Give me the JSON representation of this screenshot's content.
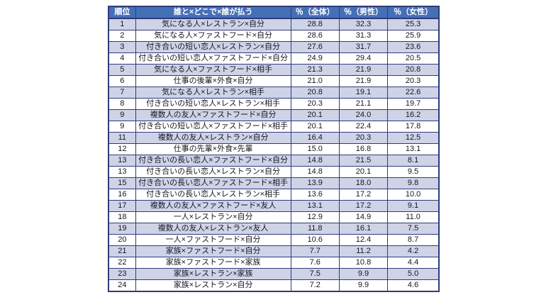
{
  "colors": {
    "header_bg": "#4470b8",
    "header_text": "#ffffff",
    "band_row_bg": "#ced3e8",
    "plain_row_bg": "#ffffff",
    "border": "#2f3c78",
    "text": "#16161f"
  },
  "chart_data": {
    "type": "table",
    "title": "",
    "columns": [
      "順位",
      "誰と×どこで×誰が払う",
      "％（全体）",
      "％（男性）",
      "％（女性）"
    ],
    "rows": [
      [
        "1",
        "気になる人×レストラン×自分",
        "28.8",
        "32.3",
        "25.3"
      ],
      [
        "2",
        "気になる人×ファストフード×自分",
        "28.6",
        "31.3",
        "25.9"
      ],
      [
        "3",
        "付き合いの短い恋人×レストラン×自分",
        "27.6",
        "31.7",
        "23.6"
      ],
      [
        "4",
        "付き合いの短い恋人×ファストフード×自分",
        "24.9",
        "29.4",
        "20.5"
      ],
      [
        "5",
        "気になる人×ファストフード×相手",
        "21.3",
        "21.9",
        "20.8"
      ],
      [
        "6",
        "仕事の後輩×外食×自分",
        "21.0",
        "21.9",
        "20.3"
      ],
      [
        "7",
        "気になる人×レストラン×相手",
        "20.8",
        "19.1",
        "22.6"
      ],
      [
        "8",
        "付き合いの短い恋人×レストラン×相手",
        "20.3",
        "21.1",
        "19.7"
      ],
      [
        "9",
        "複数人の友人×ファストフード×自分",
        "20.1",
        "24.0",
        "16.2"
      ],
      [
        "9",
        "付き合いの短い恋人×ファストフード×相手",
        "20.1",
        "22.4",
        "17.8"
      ],
      [
        "11",
        "複数人の友人×レストラン×自分",
        "16.4",
        "20.3",
        "12.5"
      ],
      [
        "12",
        "仕事の先輩×外食×先輩",
        "15.0",
        "16.8",
        "13.1"
      ],
      [
        "13",
        "付き合いの長い恋人×ファストフード×自分",
        "14.8",
        "21.5",
        "8.1"
      ],
      [
        "13",
        "付き合いの長い恋人×レストラン×自分",
        "14.8",
        "20.1",
        "9.5"
      ],
      [
        "15",
        "付き合いの長い恋人×ファストフード×相手",
        "13.9",
        "18.0",
        "9.8"
      ],
      [
        "16",
        "付き合いの長い恋人×レストラン×相手",
        "13.6",
        "17.2",
        "10.0"
      ],
      [
        "17",
        "複数人の友人×ファストフード×友人",
        "13.1",
        "17.2",
        "9.1"
      ],
      [
        "18",
        "一人×レストラン×自分",
        "12.9",
        "14.9",
        "11.0"
      ],
      [
        "19",
        "複数人の友人×レストラン×友人",
        "11.8",
        "16.1",
        "7.5"
      ],
      [
        "20",
        "一人×ファストフード×自分",
        "10.6",
        "12.4",
        "8.7"
      ],
      [
        "21",
        "家族×ファストフード×自分",
        "7.7",
        "11.2",
        "4.2"
      ],
      [
        "22",
        "家族×ファストフード×家族",
        "7.6",
        "10.8",
        "4.4"
      ],
      [
        "23",
        "家族×レストラン×家族",
        "7.5",
        "9.9",
        "5.0"
      ],
      [
        "24",
        "家族×レストラン×自分",
        "7.2",
        "9.9",
        "4.6"
      ]
    ]
  }
}
